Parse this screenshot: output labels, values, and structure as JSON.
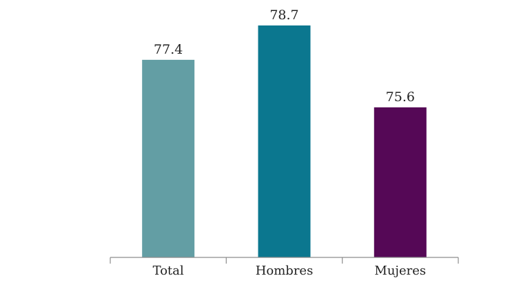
{
  "chart_data": {
    "type": "bar",
    "categories": [
      "Total",
      "Hombres",
      "Mujeres"
    ],
    "values": [
      77.4,
      78.7,
      75.6
    ],
    "data_labels": [
      "77.4",
      "78.7",
      "75.6"
    ],
    "title": "",
    "xlabel": "",
    "ylabel": "",
    "grid": false,
    "legend": "none",
    "colors": [
      "#639ea4",
      "#0b778f",
      "#550856"
    ]
  }
}
